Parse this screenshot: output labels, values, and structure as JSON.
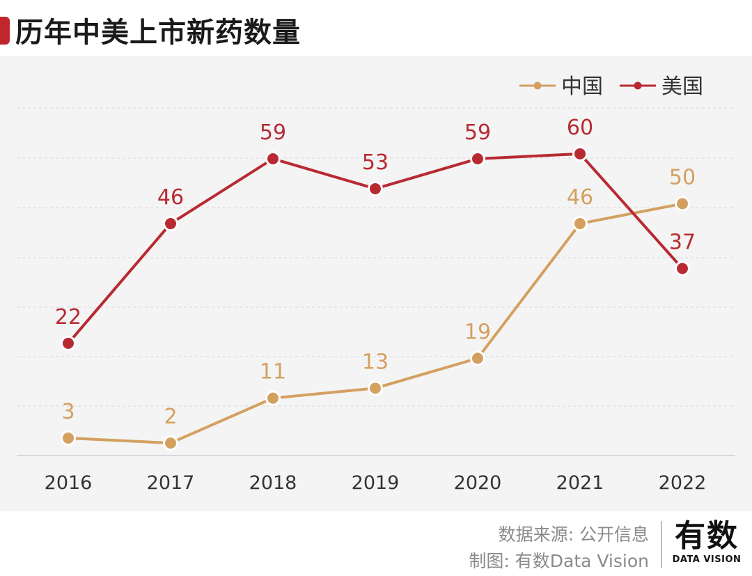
{
  "title": "历年中美上市新药数量",
  "footer": {
    "source": "数据来源: 公开信息",
    "credit": "制图: 有数Data Vision"
  },
  "brand": {
    "name_cn": "有数",
    "name_en": "DATA VISION"
  },
  "colors": {
    "china": "#d4a060",
    "usa": "#b82a32",
    "accent": "#c0272d"
  },
  "chart_data": {
    "type": "line",
    "title": "",
    "xlabel": "",
    "ylabel": "",
    "categories": [
      "2016",
      "2017",
      "2018",
      "2019",
      "2020",
      "2021",
      "2022"
    ],
    "series": [
      {
        "name": "中国",
        "color": "#d4a060",
        "values": [
          3,
          2,
          11,
          13,
          19,
          46,
          50
        ]
      },
      {
        "name": "美国",
        "color": "#b82a32",
        "values": [
          22,
          46,
          59,
          53,
          59,
          60,
          37
        ]
      }
    ],
    "ylim": [
      -0.5,
      70
    ],
    "grid": true,
    "legend": "top-right"
  }
}
